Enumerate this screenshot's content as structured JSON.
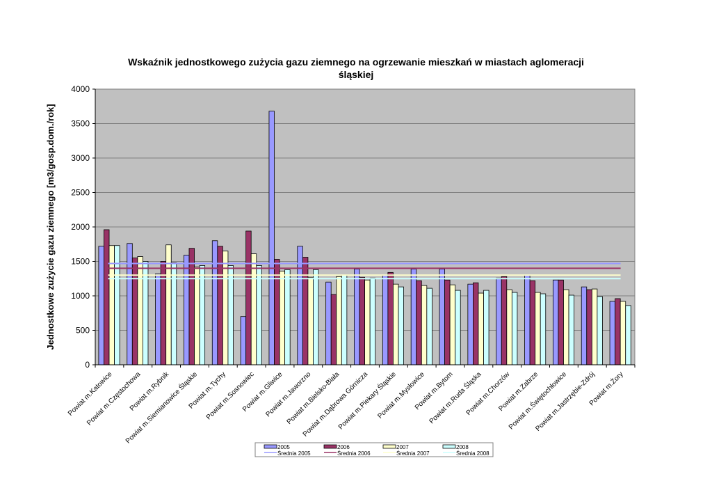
{
  "chart_data": {
    "type": "bar",
    "title": "Wskaźnik jednostkowego zużycia gazu ziemnego na ogrzewanie mieszkań w miastach aglomeracji śląskiej",
    "title_lines": [
      "Wskaźnik jednostkowego zużycia gazu ziemnego na ogrzewanie mieszkań w miastach aglomeracji",
      "śląskiej"
    ],
    "xlabel": "",
    "ylabel": "Jednostkowe zużycie gazu ziemnego [m3/gosp.dom./rok]",
    "ylim": [
      0,
      4000
    ],
    "yticks": [
      0,
      500,
      1000,
      1500,
      2000,
      2500,
      3000,
      3500,
      4000
    ],
    "grid": true,
    "legend_position": "bottom",
    "categories": [
      "Powiat m.Katowice",
      "Powiat m.Częstochowa",
      "Powiat m.Rybnik",
      "Powiat m.Siemianowice Śląskie",
      "Powiat m.Tychy",
      "Powiat m.Sosnowiec",
      "Powiat m.Gliwice",
      "Powiat m.Jaworzno",
      "Powiat m.Bielsko-Biała",
      "Powiat m.Dąbrowa Górnicza",
      "Powiat m.Piekary Śląskie",
      "Powiat m.Mysłowice",
      "Powiat m.Bytom",
      "Powiat m.Ruda Śląska",
      "Powiat m.Chorzów",
      "Powiat m.Zabrze",
      "Powiat m.Świętochłowice",
      "Powiat m.Jastrzębie-Zdrój",
      "Powiat m.Żory"
    ],
    "series": [
      {
        "name": "2005",
        "color": "#9999ff",
        "values": [
          1720,
          1760,
          1320,
          1590,
          1800,
          700,
          3680,
          1720,
          1200,
          1390,
          1300,
          1390,
          1390,
          1170,
          1260,
          1300,
          1230,
          1130,
          920
        ]
      },
      {
        "name": "2006",
        "color": "#993366",
        "values": [
          1960,
          1550,
          1500,
          1690,
          1720,
          1940,
          1530,
          1560,
          1020,
          1270,
          1340,
          1220,
          1230,
          1190,
          1280,
          1220,
          1230,
          1090,
          960
        ]
      },
      {
        "name": "2007",
        "color": "#ffffcc",
        "values": [
          1730,
          1570,
          1740,
          1420,
          1650,
          1610,
          1360,
          1270,
          1280,
          1230,
          1170,
          1150,
          1160,
          1040,
          1090,
          1050,
          1090,
          1100,
          920
        ]
      },
      {
        "name": "2008",
        "color": "#ccffff",
        "values": [
          1730,
          1500,
          1480,
          1440,
          1440,
          1440,
          1380,
          1380,
          1300,
          1260,
          1130,
          1110,
          1080,
          1080,
          1050,
          1030,
          1010,
          990,
          860
        ]
      }
    ],
    "averages": [
      {
        "name": "Średnia 2005",
        "color": "#9999ff",
        "value": 1470
      },
      {
        "name": "Średnia 2006",
        "color": "#993366",
        "value": 1400
      },
      {
        "name": "Średnia 2007",
        "color": "#ffffcc",
        "value": 1300
      },
      {
        "name": "Średnia 2008",
        "color": "#ccffff",
        "value": 1250
      }
    ]
  }
}
